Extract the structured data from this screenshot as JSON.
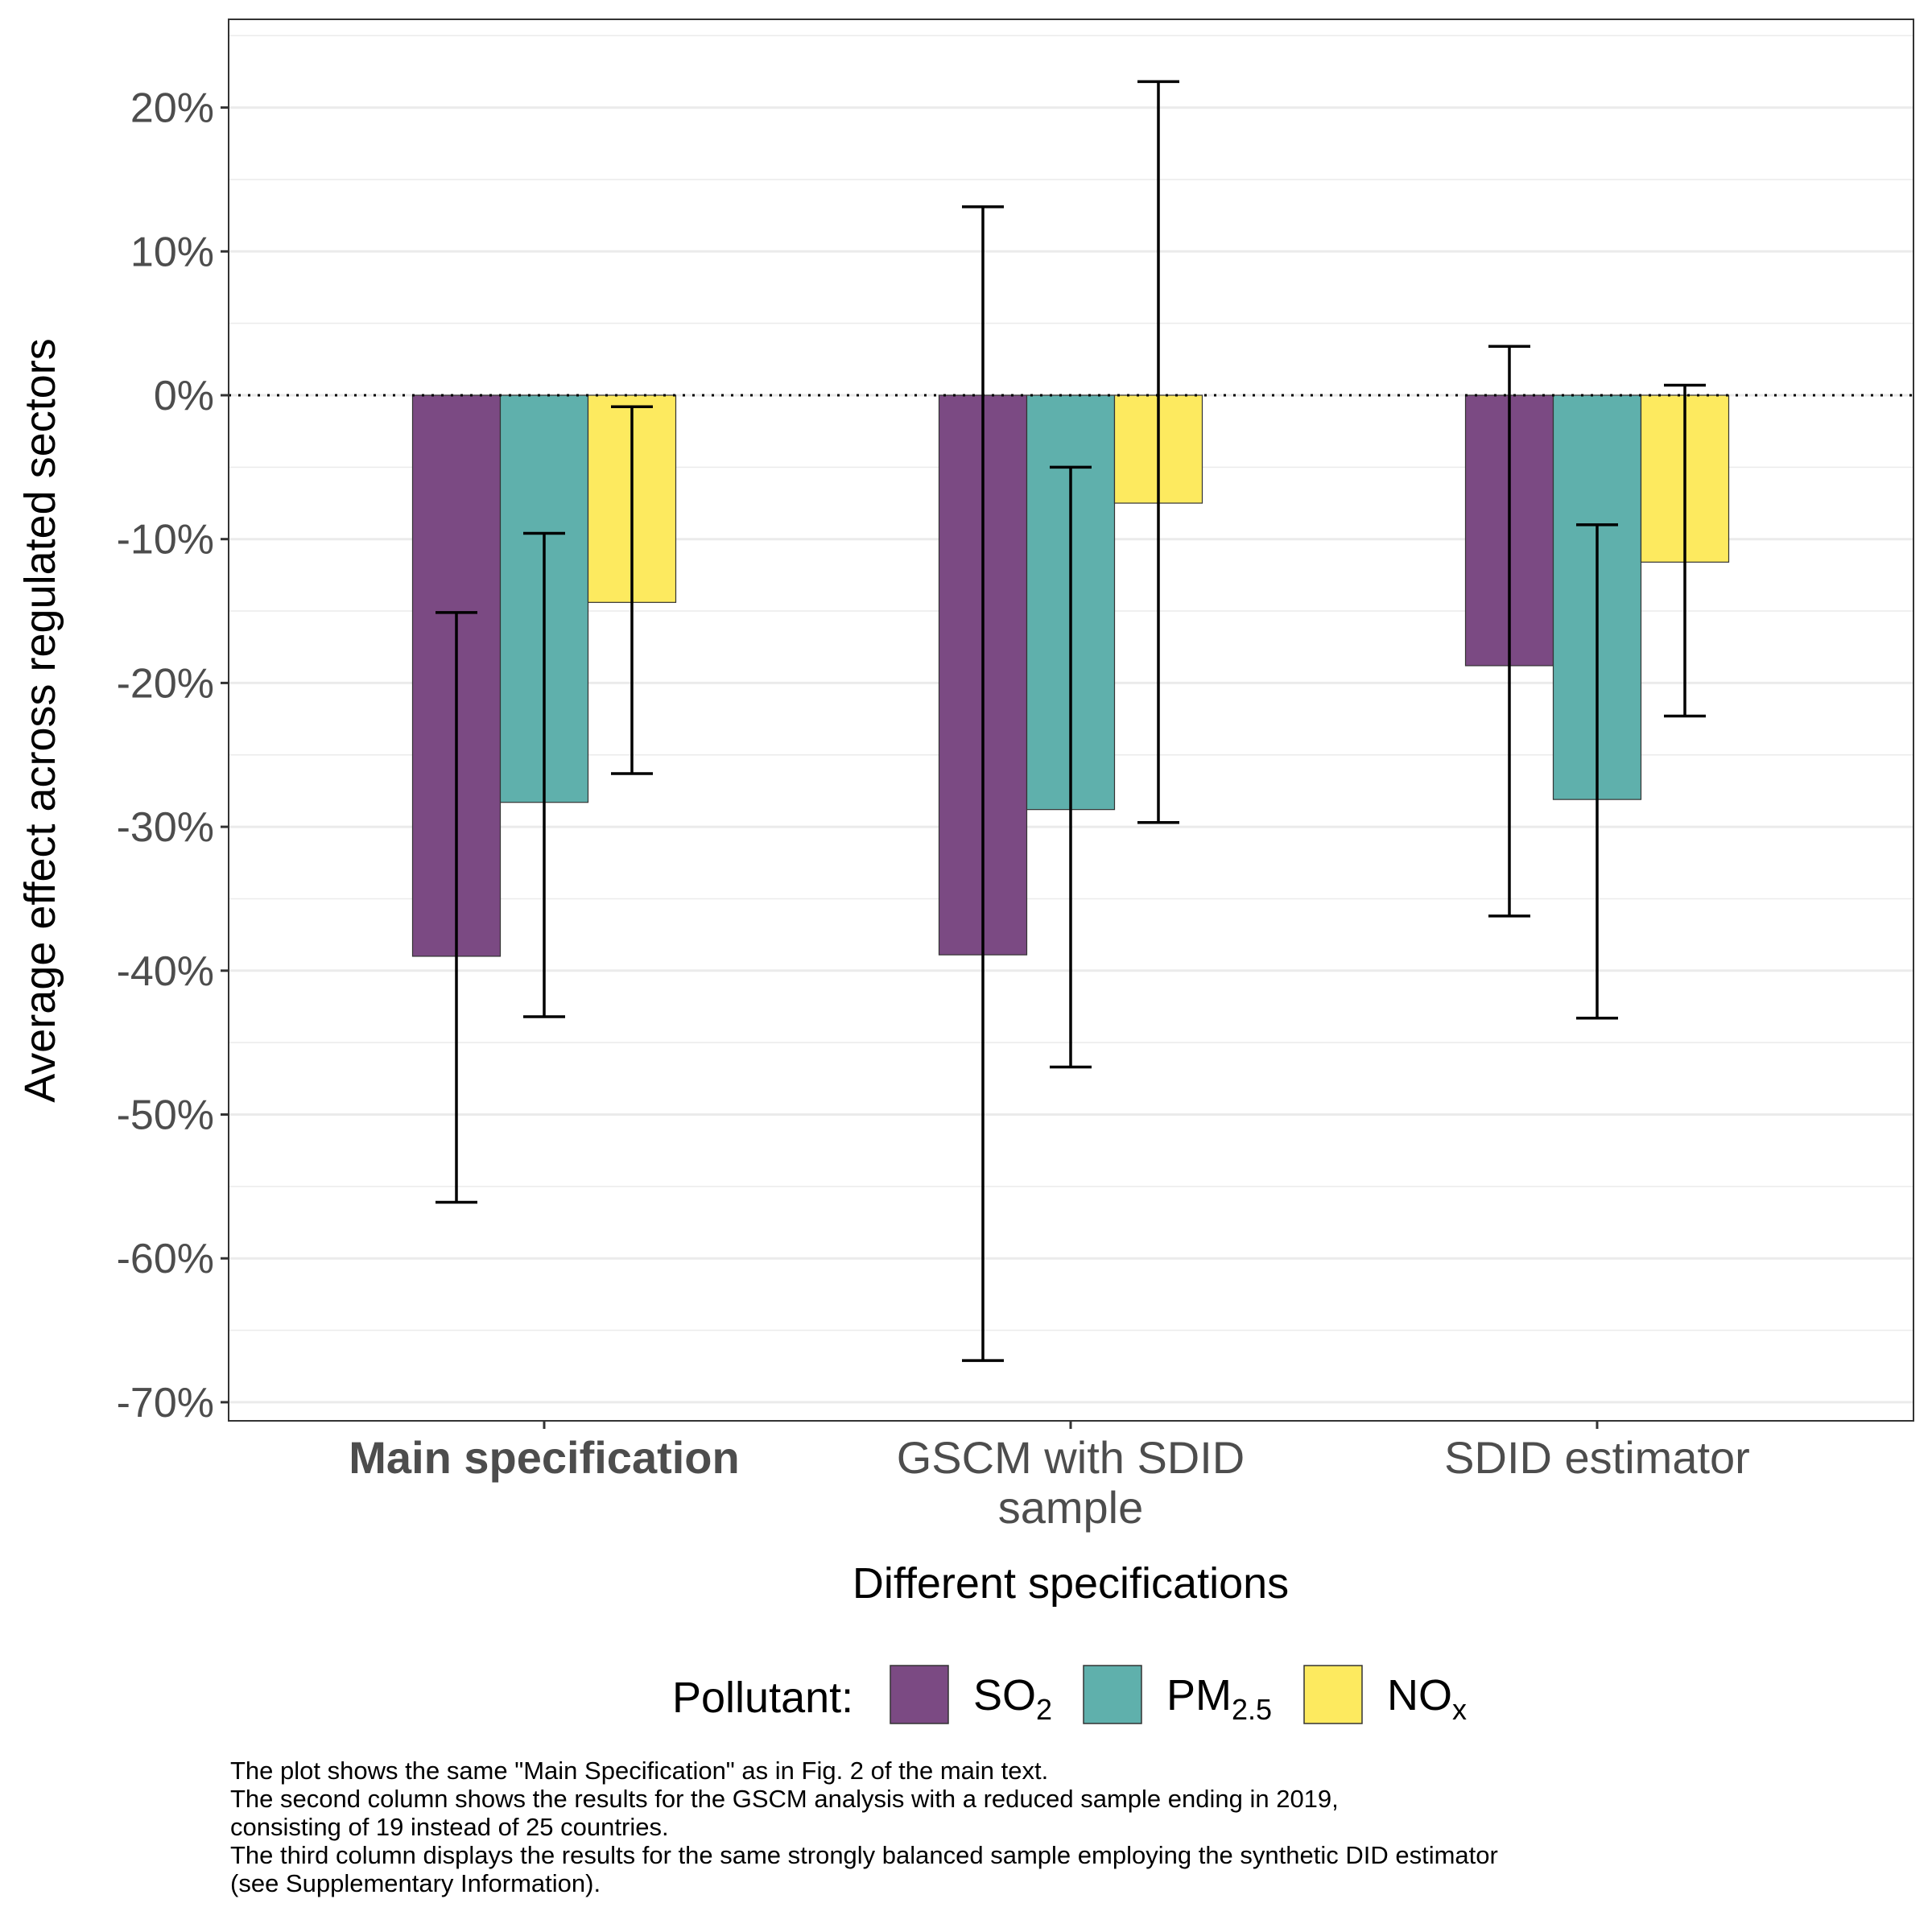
{
  "chart_data": {
    "type": "bar",
    "xlabel": "Different specifications",
    "ylabel": "Average effect across regulated sectors",
    "y_unit": "%",
    "ylim": [
      -71.5,
      25.5
    ],
    "yticks": [
      20,
      10,
      0,
      -10,
      -20,
      -30,
      -40,
      -50,
      -60,
      -70
    ],
    "ytick_labels": [
      "20%",
      "10%",
      "0%",
      "-10%",
      "-20%",
      "-30%",
      "-40%",
      "-50%",
      "-60%",
      "-70%"
    ],
    "grid": true,
    "reference_line": {
      "y": 0,
      "style": "dotted"
    },
    "categories": [
      "Main specification",
      "GSCM with SDID sample",
      "SDID estimator"
    ],
    "category_labels": [
      [
        "Main specification"
      ],
      [
        "GSCM with SDID",
        "sample"
      ],
      [
        "SDID estimator"
      ]
    ],
    "bold_category": 0,
    "series": [
      {
        "name": "SO2",
        "name_base": "SO",
        "name_sub": "2",
        "color": "#7b4a83",
        "values": [
          -39.0,
          -38.9,
          -18.8
        ],
        "ci_low": [
          -56.1,
          -67.1,
          -36.2
        ],
        "ci_high": [
          -15.1,
          13.1,
          3.4
        ]
      },
      {
        "name": "PM2.5",
        "name_base": "PM",
        "name_sub": "2.5",
        "color": "#5fb0ac",
        "values": [
          -28.3,
          -28.8,
          -28.1
        ],
        "ci_low": [
          -43.2,
          -46.7,
          -43.3
        ],
        "ci_high": [
          -9.6,
          -5.0,
          -9.0
        ]
      },
      {
        "name": "NOx",
        "name_base": "NO",
        "name_sub": "x",
        "color": "#fdea5f",
        "values": [
          -14.4,
          -7.5,
          -11.6
        ],
        "ci_low": [
          -26.3,
          -29.7,
          -22.3
        ],
        "ci_high": [
          -0.8,
          21.8,
          0.7
        ]
      }
    ],
    "legend": {
      "title": "Pollutant:",
      "position": "bottom"
    }
  },
  "caption": [
    "The plot shows the same \"Main Specification\" as in Fig. 2 of the main text.",
    "The second column shows the results for the GSCM analysis with a reduced sample ending in 2019,",
    "consisting of 19 instead of 25 countries.",
    "The third column displays the results for the same strongly balanced sample employing the synthetic DID estimator",
    "(see Supplementary Information)."
  ]
}
